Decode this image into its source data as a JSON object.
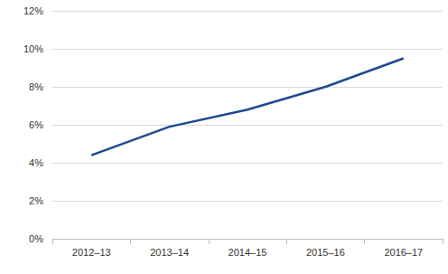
{
  "chart_data": {
    "type": "line",
    "categories": [
      "2012–13",
      "2013–14",
      "2014–15",
      "2015–16",
      "2016–17"
    ],
    "values": [
      4.4,
      5.9,
      6.8,
      8.0,
      9.5
    ],
    "color": "#1f4a8f",
    "ylim": [
      0,
      12
    ],
    "yticks": [
      {
        "value": 0,
        "label": "0%"
      },
      {
        "value": 2,
        "label": "2%"
      },
      {
        "value": 4,
        "label": "4%"
      },
      {
        "value": 6,
        "label": "6%"
      },
      {
        "value": 8,
        "label": "8%"
      },
      {
        "value": 10,
        "label": "10%"
      },
      {
        "value": 12,
        "label": "12%"
      }
    ],
    "grid": true
  }
}
